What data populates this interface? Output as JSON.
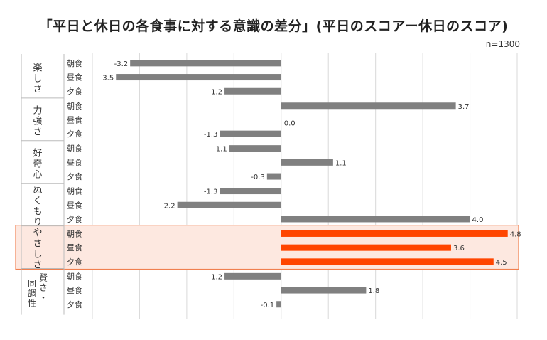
{
  "chart_data": {
    "type": "bar",
    "orientation": "horizontal",
    "title": "「平日と休日の各食事に対する意識の差分」(平日のスコアー休日のスコア)",
    "note": "n=1300",
    "xlim": [
      -4,
      5
    ],
    "grid": true,
    "bar_color": "#808080",
    "highlight_color": "#ff4500",
    "highlight_group": "やさしさ",
    "groups": [
      {
        "label": "楽しさ",
        "categories": [
          "朝食",
          "昼食",
          "夕食"
        ],
        "values": [
          -3.2,
          -3.5,
          -1.2
        ]
      },
      {
        "label": "力強さ",
        "categories": [
          "朝食",
          "昼食",
          "夕食"
        ],
        "values": [
          3.7,
          0.0,
          -1.3
        ]
      },
      {
        "label": "好奇心",
        "categories": [
          "朝食",
          "昼食",
          "夕食"
        ],
        "values": [
          -1.1,
          1.1,
          -0.3
        ]
      },
      {
        "label": "ぬくもり",
        "categories": [
          "朝食",
          "昼食",
          "夕食"
        ],
        "values": [
          -1.3,
          -2.2,
          4.0
        ]
      },
      {
        "label": "やさしさ",
        "categories": [
          "朝食",
          "昼食",
          "夕食"
        ],
        "values": [
          4.8,
          3.6,
          4.5
        ]
      },
      {
        "label": "賢さ・同調性",
        "categories": [
          "朝食",
          "昼食",
          "夕食"
        ],
        "values": [
          -1.2,
          1.8,
          -0.1
        ]
      }
    ]
  }
}
